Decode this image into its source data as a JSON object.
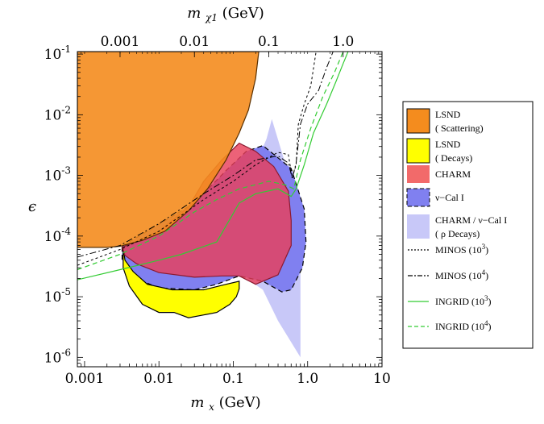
{
  "chart_data": {
    "type": "area",
    "xlabel": "m_x",
    "xlabel_sub": "x",
    "xlabel_unit": "(GeV)",
    "top_xlabel": "m_χ1",
    "top_xlabel_sub": "χ1",
    "top_xlabel_unit": "(GeV)",
    "ylabel": "ϵ",
    "xlim": [
      0.0008,
      10
    ],
    "ylim": [
      7e-07,
      0.11
    ],
    "x_scale": "log",
    "y_scale": "log",
    "x_ticks": [
      {
        "value": 0.001,
        "label": "0.001"
      },
      {
        "value": 0.01,
        "label": "0.01"
      },
      {
        "value": 0.1,
        "label": "0.1"
      },
      {
        "value": 1,
        "label": "1.0"
      },
      {
        "value": 10,
        "label": "10"
      }
    ],
    "top_ticks": [
      {
        "value": 0.003,
        "label": "0.001"
      },
      {
        "value": 0.03,
        "label": "0.01"
      },
      {
        "value": 0.3,
        "label": "0.1"
      },
      {
        "value": 3,
        "label": "1.0"
      }
    ],
    "y_ticks": [
      {
        "value": 0.1,
        "base": "10",
        "exp": "-1"
      },
      {
        "value": 0.01,
        "base": "10",
        "exp": "-2"
      },
      {
        "value": 0.001,
        "base": "10",
        "exp": "-3"
      },
      {
        "value": 0.0001,
        "base": "10",
        "exp": "-4"
      },
      {
        "value": 1e-05,
        "base": "10",
        "exp": "-5"
      },
      {
        "value": 1e-06,
        "base": "10",
        "exp": "-6"
      }
    ],
    "regions": [
      {
        "name": "CHARM/ν-Cal I (ρ Decays)",
        "fill": "#c8c8f8",
        "stroke": "none",
        "dash": "",
        "opacity": 1,
        "points": [
          [
            0.12,
            0.0003
          ],
          [
            0.2,
            0.0015
          ],
          [
            0.28,
            0.004
          ],
          [
            0.33,
            0.0085
          ],
          [
            0.7,
            0.0004
          ],
          [
            0.8,
            0.00012
          ],
          [
            0.8,
            1e-06
          ],
          [
            0.4,
            4e-06
          ],
          [
            0.25,
            1.3e-05
          ],
          [
            0.15,
            2e-05
          ]
        ]
      },
      {
        "name": "ν-Cal I",
        "fill": "#8080f0",
        "stroke": "#000000",
        "dash": "6,4",
        "opacity": 1,
        "points": [
          [
            0.0032,
            6.8e-05
          ],
          [
            0.03,
            0.00035
          ],
          [
            0.08,
            0.0012
          ],
          [
            0.15,
            0.0025
          ],
          [
            0.25,
            0.0031
          ],
          [
            0.6,
            0.0013
          ],
          [
            0.9,
            0.00028
          ],
          [
            0.95,
            8e-05
          ],
          [
            0.85,
            3e-05
          ],
          [
            0.6,
            1.3e-05
          ],
          [
            0.45,
            1.2e-05
          ],
          [
            0.25,
            1.8e-05
          ],
          [
            0.12,
            2.2e-05
          ],
          [
            0.06,
            1.6e-05
          ],
          [
            0.03,
            1.3e-05
          ],
          [
            0.01,
            1.4e-05
          ],
          [
            0.006,
            1.8e-05
          ],
          [
            0.004,
            2.7e-05
          ],
          [
            0.0032,
            4e-05
          ]
        ]
      },
      {
        "name": "LSND (Decays)",
        "fill": "#ffff00",
        "stroke": "#000000",
        "dash": "",
        "opacity": 1,
        "points": [
          [
            0.0033,
            6.5e-05
          ],
          [
            0.0033,
            3e-05
          ],
          [
            0.004,
            1.5e-05
          ],
          [
            0.006,
            7.5e-06
          ],
          [
            0.01,
            5.5e-06
          ],
          [
            0.016,
            5.5e-06
          ],
          [
            0.025,
            4.5e-06
          ],
          [
            0.04,
            5e-06
          ],
          [
            0.06,
            5.5e-06
          ],
          [
            0.09,
            7.5e-06
          ],
          [
            0.11,
            1e-05
          ],
          [
            0.12,
            1.35e-05
          ],
          [
            0.12,
            1.8e-05
          ],
          [
            0.08,
            1.6e-05
          ],
          [
            0.04,
            1.3e-05
          ],
          [
            0.015,
            1.3e-05
          ],
          [
            0.007,
            1.6e-05
          ],
          [
            0.0045,
            2.6e-05
          ],
          [
            0.0035,
            4e-05
          ]
        ]
      },
      {
        "name": "CHARM",
        "fill": "#e8405a",
        "stroke": "#8b1a30",
        "dash": "",
        "opacity": 0.82,
        "points": [
          [
            0.0032,
            6.5e-05
          ],
          [
            0.01,
            0.00012
          ],
          [
            0.025,
            0.0003
          ],
          [
            0.04,
            0.0008
          ],
          [
            0.07,
            0.0018
          ],
          [
            0.12,
            0.0034
          ],
          [
            0.2,
            0.0025
          ],
          [
            0.35,
            0.0014
          ],
          [
            0.55,
            0.00055
          ],
          [
            0.6,
            0.00018
          ],
          [
            0.6,
            7e-05
          ],
          [
            0.4,
            2.3e-05
          ],
          [
            0.2,
            1.6e-05
          ],
          [
            0.12,
            2.2e-05
          ],
          [
            0.07,
            2.2e-05
          ],
          [
            0.03,
            2.1e-05
          ],
          [
            0.01,
            2.5e-05
          ],
          [
            0.005,
            3.5e-05
          ],
          [
            0.0035,
            4.8e-05
          ]
        ]
      },
      {
        "name": "LSND (Scattering)",
        "fill": "#f48c1e",
        "stroke": "#5a3000",
        "dash": "",
        "opacity": 0.9,
        "points": [
          [
            0.0008,
            0.11
          ],
          [
            0.22,
            0.11
          ],
          [
            0.2,
            0.04
          ],
          [
            0.16,
            0.012
          ],
          [
            0.12,
            0.005
          ],
          [
            0.08,
            0.0018
          ],
          [
            0.045,
            0.0006
          ],
          [
            0.025,
            0.00026
          ],
          [
            0.012,
            0.00012
          ],
          [
            0.006,
            8.5e-05
          ],
          [
            0.003,
            6.8e-05
          ],
          [
            0.002,
            6.5e-05
          ],
          [
            0.0008,
            6.5e-05
          ]
        ]
      }
    ],
    "curves": [
      {
        "name": "MINOS (10^3)",
        "stroke": "#000000",
        "dash": "3,3",
        "width": 1,
        "points": [
          [
            0.0008,
            3.3e-05
          ],
          [
            0.003,
            6e-05
          ],
          [
            0.01,
            0.00012
          ],
          [
            0.04,
            0.0004
          ],
          [
            0.1,
            0.0008
          ],
          [
            0.2,
            0.0015
          ],
          [
            0.4,
            0.0024
          ],
          [
            0.55,
            0.0022
          ],
          [
            0.62,
            0.0009
          ],
          [
            0.7,
            0.0015
          ],
          [
            0.75,
            0.007
          ],
          [
            0.9,
            0.015
          ],
          [
            1.1,
            0.03
          ],
          [
            1.3,
            0.11
          ]
        ]
      },
      {
        "name": "MINOS (10^4)",
        "stroke": "#000000",
        "dash": "8,3,2,3",
        "width": 1,
        "points": [
          [
            0.0008,
            4.5e-05
          ],
          [
            0.003,
            7e-05
          ],
          [
            0.01,
            0.00016
          ],
          [
            0.04,
            0.0005
          ],
          [
            0.1,
            0.001
          ],
          [
            0.2,
            0.0018
          ],
          [
            0.4,
            0.0021
          ],
          [
            0.55,
            0.0016
          ],
          [
            0.62,
            0.0009
          ],
          [
            0.7,
            0.0016
          ],
          [
            0.8,
            0.007
          ],
          [
            1,
            0.015
          ],
          [
            1.4,
            0.025
          ],
          [
            1.8,
            0.06
          ],
          [
            2.2,
            0.11
          ]
        ]
      },
      {
        "name": "INGRID (10^3)",
        "stroke": "#33cc33",
        "dash": "",
        "width": 1.2,
        "points": [
          [
            0.0008,
            1.9e-05
          ],
          [
            0.003,
            2.8e-05
          ],
          [
            0.01,
            4e-05
          ],
          [
            0.02,
            5e-05
          ],
          [
            0.06,
            8e-05
          ],
          [
            0.12,
            0.00035
          ],
          [
            0.2,
            0.0005
          ],
          [
            0.4,
            0.0006
          ],
          [
            0.6,
            0.00045
          ],
          [
            0.7,
            0.0006
          ],
          [
            0.9,
            0.0015
          ],
          [
            1.2,
            0.005
          ],
          [
            1.8,
            0.015
          ],
          [
            2.4,
            0.035
          ],
          [
            3,
            0.07
          ],
          [
            3.5,
            0.11
          ]
        ]
      },
      {
        "name": "INGRID (10^4)",
        "stroke": "#33cc33",
        "dash": "6,4",
        "width": 1.2,
        "points": [
          [
            0.0008,
            2.8e-05
          ],
          [
            0.003,
            5e-05
          ],
          [
            0.01,
            0.0001
          ],
          [
            0.03,
            0.00025
          ],
          [
            0.06,
            0.0004
          ],
          [
            0.12,
            0.0006
          ],
          [
            0.3,
            0.0008
          ],
          [
            0.5,
            0.0007
          ],
          [
            0.65,
            0.0006
          ],
          [
            0.8,
            0.0018
          ],
          [
            1.1,
            0.006
          ],
          [
            1.6,
            0.02
          ],
          [
            2.3,
            0.05
          ],
          [
            3,
            0.11
          ]
        ]
      }
    ],
    "legend": [
      {
        "kind": "box",
        "fill": "#f48c1e",
        "stroke": "#000000",
        "dash": "",
        "line1": "LSND",
        "line2": "( Scattering)"
      },
      {
        "kind": "box",
        "fill": "#ffff00",
        "stroke": "#000000",
        "dash": "",
        "line1": "LSND",
        "line2": "( Decays)"
      },
      {
        "kind": "box",
        "fill": "#f26a6a",
        "stroke": "none",
        "dash": "",
        "line1": "CHARM",
        "line2": ""
      },
      {
        "kind": "box",
        "fill": "#8080f0",
        "stroke": "#000000",
        "dash": "5,3",
        "line1": "ν−Cal I",
        "line2": ""
      },
      {
        "kind": "box",
        "fill": "#c8c8f8",
        "stroke": "none",
        "dash": "",
        "line1": "CHARM / ν−Cal I",
        "line2": "( ρ Decays)"
      },
      {
        "kind": "line",
        "stroke": "#000000",
        "dash": "2,2",
        "line1": "MINOS (10",
        "sup": "3",
        "tail": ")"
      },
      {
        "kind": "line",
        "stroke": "#000000",
        "dash": "6,2,2,2",
        "line1": "MINOS (10",
        "sup": "4",
        "tail": ")"
      },
      {
        "kind": "line",
        "stroke": "#33cc33",
        "dash": "",
        "line1": "INGRID (10",
        "sup": "3",
        "tail": ")"
      },
      {
        "kind": "line",
        "stroke": "#33cc33",
        "dash": "5,3",
        "line1": "INGRID (10",
        "sup": "4",
        "tail": ")"
      }
    ]
  }
}
